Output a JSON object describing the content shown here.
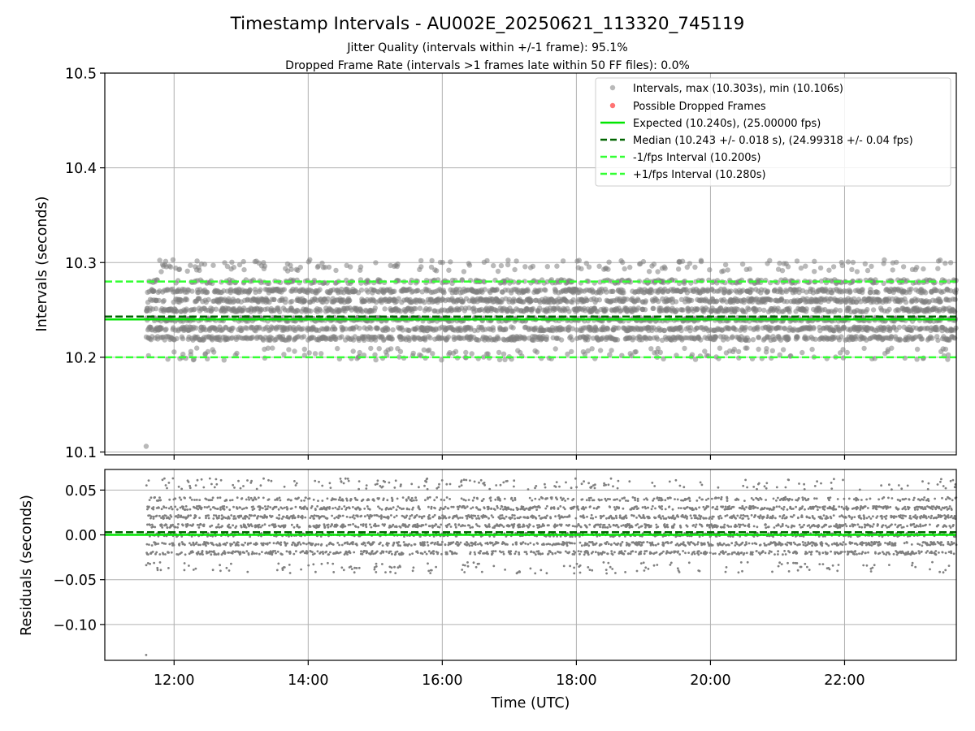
{
  "figure": {
    "title": "Timestamp Intervals - AU002E_20250621_113320_745119",
    "subtitle_lines": [
      "Jitter Quality (intervals within +/-1 frame): 95.1%",
      "Dropped Frame Rate (intervals >1 frames late within 50 FF files): 0.0%"
    ],
    "colors": {
      "points": "#808080",
      "dropped": "#ff0000",
      "expected": "#00e600",
      "median": "#006400",
      "interval_lines": "#33ff33",
      "grid": "#b0b0b0"
    }
  },
  "chart_data": [
    {
      "type": "scatter",
      "title": "",
      "xlabel": "",
      "ylabel": "Intervals (seconds)",
      "xlim": [
        "10:58",
        "23:40"
      ],
      "ylim": [
        10.097,
        10.5
      ],
      "xticks": [
        "12:00",
        "14:00",
        "16:00",
        "18:00",
        "20:00",
        "22:00"
      ],
      "yticks": [
        10.1,
        10.2,
        10.3,
        10.4,
        10.5
      ],
      "ytick_labels": [
        "10.1",
        "10.2",
        "10.3",
        "10.4",
        "10.5"
      ],
      "grid": true,
      "legend_position": "top-right",
      "legend": [
        "Intervals, max (10.303s), min (10.106s)",
        "Possible Dropped Frames",
        "Expected (10.240s), (25.00000 fps)",
        "Median (10.243 +/- 0.018 s), (24.99318 +/- 0.04 fps)",
        "-1/fps Interval (10.200s)",
        "+1/fps Interval (10.280s)"
      ],
      "reference_lines": {
        "expected": 10.24,
        "median": 10.243,
        "minus_1_fps": 10.2,
        "plus_1_fps": 10.28
      },
      "series": [
        {
          "name": "Intervals, max (10.303s), min (10.106s)",
          "x_range": [
            "11:35",
            "23:40"
          ],
          "approx_count": 4200,
          "y_levels": [
            10.22,
            10.23,
            10.24,
            10.25,
            10.26,
            10.27,
            10.28
          ],
          "y_range": [
            10.197,
            10.303
          ],
          "outliers": [
            {
              "x": "11:35",
              "y": 10.106
            },
            {
              "x": "11:59",
              "y": 10.303
            },
            {
              "x": "20:51",
              "y": 10.299
            },
            {
              "x": "22:35",
              "y": 10.299
            },
            {
              "x": "23:35",
              "y": 10.3
            }
          ]
        },
        {
          "name": "Possible Dropped Frames",
          "points": []
        }
      ]
    },
    {
      "type": "scatter",
      "title": "",
      "xlabel": "Time (UTC)",
      "ylabel": "Residuals (seconds)",
      "xlim": [
        "10:58",
        "23:40"
      ],
      "ylim": [
        -0.14,
        0.073
      ],
      "xticks": [
        "12:00",
        "14:00",
        "16:00",
        "18:00",
        "20:00",
        "22:00"
      ],
      "yticks": [
        0.05,
        0.0,
        -0.05,
        -0.1
      ],
      "ytick_labels": [
        "0.05",
        "0.00",
        "−0.05",
        "−0.10"
      ],
      "grid": true,
      "reference_lines": {
        "zero": 0.0,
        "median_offset": 0.003
      },
      "series": [
        {
          "name": "",
          "x_range": [
            "11:35",
            "23:40"
          ],
          "approx_count": 4200,
          "y_levels": [
            -0.02,
            -0.01,
            0.0,
            0.01,
            0.02,
            0.03,
            0.04
          ],
          "y_range": [
            -0.043,
            0.063
          ],
          "outliers": [
            {
              "x": "11:35",
              "y": -0.134
            },
            {
              "x": "11:59",
              "y": 0.063
            },
            {
              "x": "23:35",
              "y": 0.06
            }
          ]
        }
      ]
    }
  ]
}
